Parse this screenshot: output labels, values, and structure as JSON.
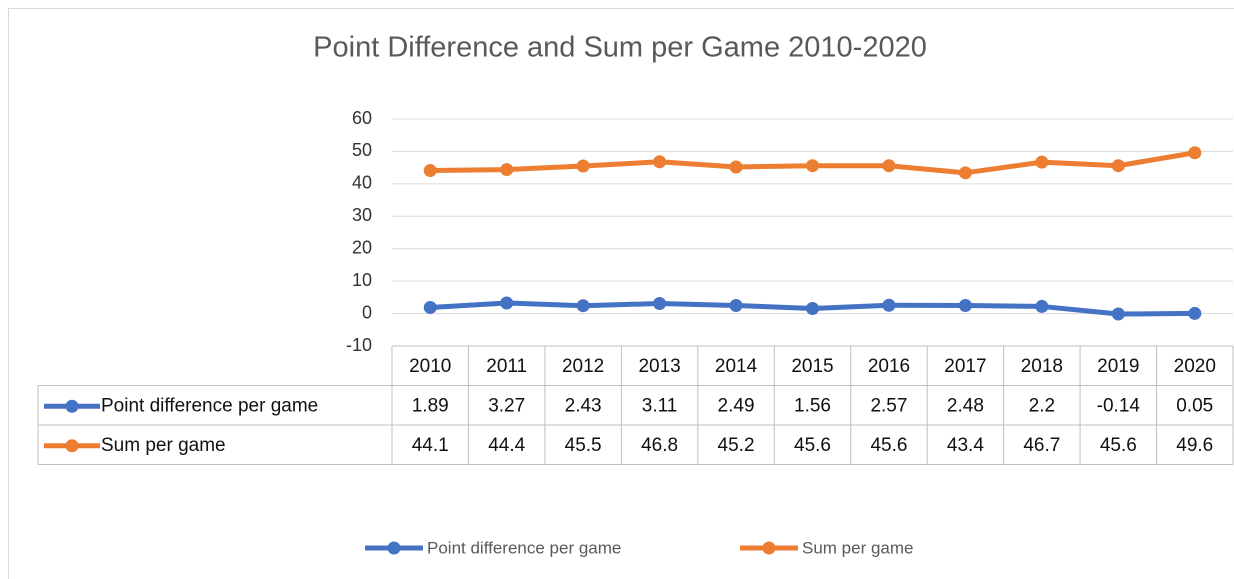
{
  "chart_data": {
    "type": "line",
    "title": "Point Difference and Sum per Game 2010-2020",
    "categories": [
      "2010",
      "2011",
      "2012",
      "2013",
      "2014",
      "2015",
      "2016",
      "2017",
      "2018",
      "2019",
      "2020"
    ],
    "series": [
      {
        "name": "Point difference per game",
        "color": "#4472c4",
        "values": [
          1.89,
          3.27,
          2.43,
          3.11,
          2.49,
          1.56,
          2.57,
          2.48,
          2.2,
          -0.14,
          0.05
        ]
      },
      {
        "name": "Sum per game",
        "color": "#ed7d31",
        "values": [
          44.1,
          44.4,
          45.5,
          46.8,
          45.2,
          45.6,
          45.6,
          43.4,
          46.7,
          45.6,
          49.6
        ]
      }
    ],
    "ylim": [
      -10,
      60
    ],
    "yticks": [
      -10,
      0,
      10,
      20,
      30,
      40,
      50,
      60
    ],
    "grid": true,
    "legend": "bottom",
    "data_table": true
  }
}
